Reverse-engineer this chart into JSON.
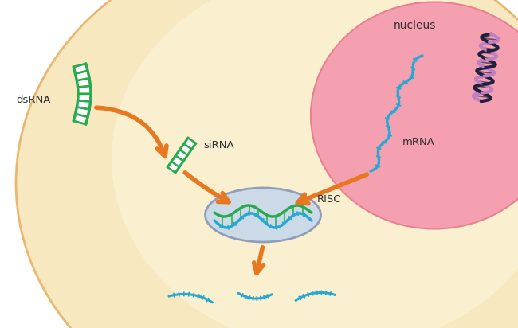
{
  "bg_color": "#ffffff",
  "cell_fill": "#f7e8c0",
  "cell_edge": "#e8b870",
  "nucleus_fill": "#f5a0b0",
  "nucleus_edge": "#e88090",
  "risc_fill": "#c8d8ea",
  "risc_edge": "#8898b8",
  "arrow_color": "#e87820",
  "rna_green": "#2aaa50",
  "rna_cyan": "#28a8d0",
  "dna_dark": "#202040",
  "dna_purple": "#c080c0",
  "dna_blue": "#30a0d0",
  "text_color": "#303030",
  "dsRNA_label": "dsRNA",
  "siRNA_label": "siRNA",
  "mRNA_label": "mRNA",
  "RISC_label": "RISC",
  "nucleus_label": "nucleus",
  "fig_w": 6.5,
  "fig_h": 4.12,
  "dpi": 100
}
